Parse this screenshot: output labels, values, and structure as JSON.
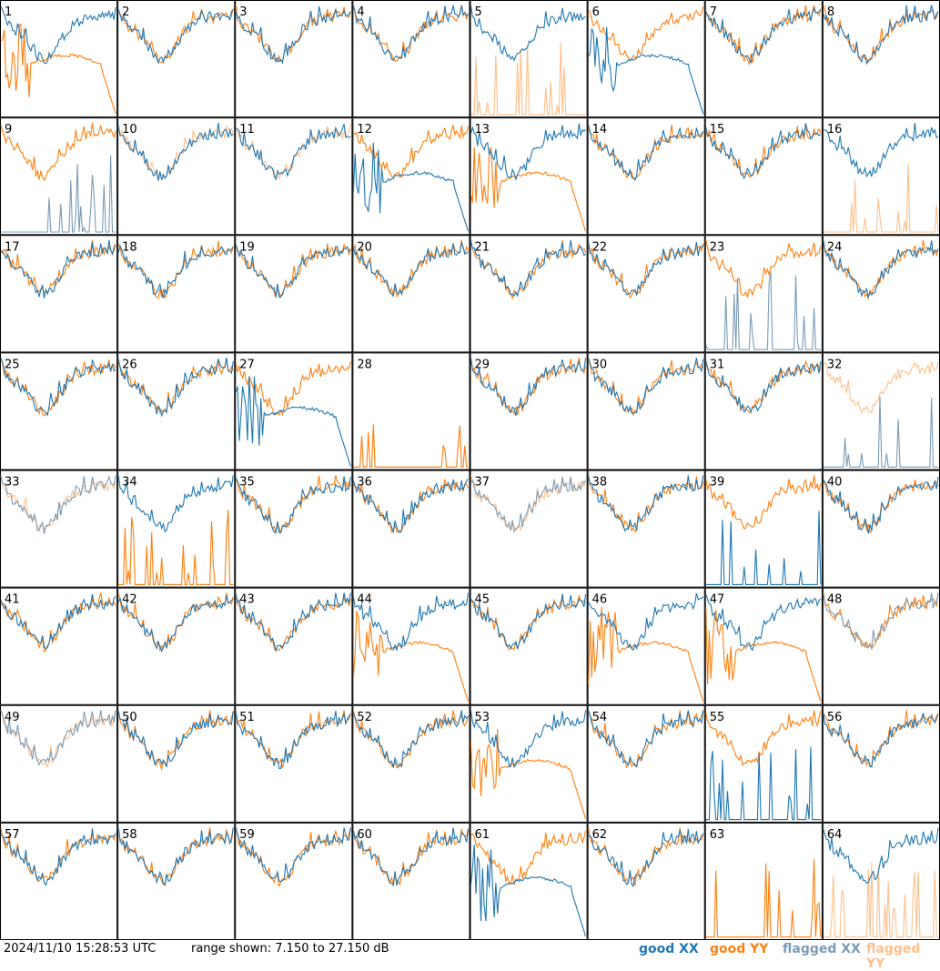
{
  "footer": {
    "timestamp": "2024/11/10 15:28:53 UTC",
    "range_label": "range shown: 7.150 to 27.150 dB"
  },
  "legend": [
    {
      "word": "good",
      "pol": "XX",
      "color": "#1f77b4"
    },
    {
      "word": "good",
      "pol": "YY",
      "color": "#ff7f0e"
    },
    {
      "word": "flagged",
      "pol": "XX",
      "color": "#7b9cb8"
    },
    {
      "word": "flagged",
      "pol": "YY",
      "color": "#ffbf8a"
    }
  ],
  "colors": {
    "good_xx": "#1f77b4",
    "good_yy": "#ff7f0e",
    "flagged_xx": "#7b9cb8",
    "flagged_yy": "#ffbf8a"
  },
  "chart_data": {
    "type": "line",
    "layout": "8x8 small multiples",
    "y_range_db": [
      7.15,
      27.15
    ],
    "panels": [
      {
        "id": "1",
        "xx": "good",
        "yy": "good",
        "xx_shape": "normal",
        "yy_shape": "decay"
      },
      {
        "id": "2",
        "xx": "good",
        "yy": "good",
        "xx_shape": "normal",
        "yy_shape": "normal"
      },
      {
        "id": "3",
        "xx": "good",
        "yy": "good",
        "xx_shape": "normal",
        "yy_shape": "normal"
      },
      {
        "id": "4",
        "xx": "good",
        "yy": "good",
        "xx_shape": "normal",
        "yy_shape": "normal"
      },
      {
        "id": "5",
        "xx": "good",
        "yy": "flagged",
        "xx_shape": "normal",
        "yy_shape": "spikes"
      },
      {
        "id": "6",
        "xx": "good",
        "yy": "good",
        "xx_shape": "decay",
        "yy_shape": "normal"
      },
      {
        "id": "7",
        "xx": "good",
        "yy": "good",
        "xx_shape": "normal",
        "yy_shape": "normal"
      },
      {
        "id": "8",
        "xx": "good",
        "yy": "good",
        "xx_shape": "normal",
        "yy_shape": "normal"
      },
      {
        "id": "9",
        "xx": "flagged",
        "yy": "good",
        "xx_shape": "spikes",
        "yy_shape": "normal"
      },
      {
        "id": "10",
        "xx": "good",
        "yy": "flagged",
        "xx_shape": "normal",
        "yy_shape": "normal"
      },
      {
        "id": "11",
        "xx": "good",
        "yy": "flagged",
        "xx_shape": "normal",
        "yy_shape": "normal"
      },
      {
        "id": "12",
        "xx": "good",
        "yy": "good",
        "xx_shape": "decay",
        "yy_shape": "normal"
      },
      {
        "id": "13",
        "xx": "good",
        "yy": "good",
        "xx_shape": "normal",
        "yy_shape": "decay"
      },
      {
        "id": "14",
        "xx": "good",
        "yy": "good",
        "xx_shape": "normal",
        "yy_shape": "normal"
      },
      {
        "id": "15",
        "xx": "good",
        "yy": "good",
        "xx_shape": "normal",
        "yy_shape": "normal"
      },
      {
        "id": "16",
        "xx": "good",
        "yy": "flagged",
        "xx_shape": "normal",
        "yy_shape": "spikes"
      },
      {
        "id": "17",
        "xx": "good",
        "yy": "good",
        "xx_shape": "normal",
        "yy_shape": "normal"
      },
      {
        "id": "18",
        "xx": "good",
        "yy": "good",
        "xx_shape": "normal",
        "yy_shape": "normal"
      },
      {
        "id": "19",
        "xx": "good",
        "yy": "good",
        "xx_shape": "normal",
        "yy_shape": "normal"
      },
      {
        "id": "20",
        "xx": "good",
        "yy": "good",
        "xx_shape": "normal",
        "yy_shape": "normal"
      },
      {
        "id": "21",
        "xx": "good",
        "yy": "good",
        "xx_shape": "normal",
        "yy_shape": "normal"
      },
      {
        "id": "22",
        "xx": "good",
        "yy": "good",
        "xx_shape": "normal",
        "yy_shape": "normal"
      },
      {
        "id": "23",
        "xx": "flagged",
        "yy": "good",
        "xx_shape": "spikes",
        "yy_shape": "normal"
      },
      {
        "id": "24",
        "xx": "good",
        "yy": "good",
        "xx_shape": "normal",
        "yy_shape": "normal"
      },
      {
        "id": "25",
        "xx": "good",
        "yy": "good",
        "xx_shape": "normal",
        "yy_shape": "normal"
      },
      {
        "id": "26",
        "xx": "good",
        "yy": "good",
        "xx_shape": "normal",
        "yy_shape": "normal"
      },
      {
        "id": "27",
        "xx": "good",
        "yy": "good",
        "xx_shape": "decay",
        "yy_shape": "normal"
      },
      {
        "id": "28",
        "xx": "none",
        "yy": "good",
        "xx_shape": "none",
        "yy_shape": "spikes"
      },
      {
        "id": "29",
        "xx": "good",
        "yy": "good",
        "xx_shape": "normal",
        "yy_shape": "normal"
      },
      {
        "id": "30",
        "xx": "good",
        "yy": "good",
        "xx_shape": "normal",
        "yy_shape": "normal"
      },
      {
        "id": "31",
        "xx": "good",
        "yy": "good",
        "xx_shape": "normal",
        "yy_shape": "normal"
      },
      {
        "id": "32",
        "xx": "flagged",
        "yy": "flagged",
        "xx_shape": "spikes",
        "yy_shape": "normal"
      },
      {
        "id": "33",
        "xx": "flagged",
        "yy": "flagged",
        "xx_shape": "normal",
        "yy_shape": "normal"
      },
      {
        "id": "34",
        "xx": "good",
        "yy": "good",
        "xx_shape": "normal",
        "yy_shape": "spikes"
      },
      {
        "id": "35",
        "xx": "good",
        "yy": "good",
        "xx_shape": "normal",
        "yy_shape": "normal"
      },
      {
        "id": "36",
        "xx": "good",
        "yy": "good",
        "xx_shape": "normal",
        "yy_shape": "normal"
      },
      {
        "id": "37",
        "xx": "flagged",
        "yy": "flagged",
        "xx_shape": "normal",
        "yy_shape": "normal"
      },
      {
        "id": "38",
        "xx": "good",
        "yy": "good",
        "xx_shape": "normal",
        "yy_shape": "normal"
      },
      {
        "id": "39",
        "xx": "good",
        "yy": "good",
        "xx_shape": "spikes",
        "yy_shape": "normal"
      },
      {
        "id": "40",
        "xx": "good",
        "yy": "good",
        "xx_shape": "normal",
        "yy_shape": "normal"
      },
      {
        "id": "41",
        "xx": "good",
        "yy": "good",
        "xx_shape": "normal",
        "yy_shape": "normal"
      },
      {
        "id": "42",
        "xx": "good",
        "yy": "good",
        "xx_shape": "normal",
        "yy_shape": "normal"
      },
      {
        "id": "43",
        "xx": "good",
        "yy": "good",
        "xx_shape": "normal",
        "yy_shape": "normal"
      },
      {
        "id": "44",
        "xx": "good",
        "yy": "good",
        "xx_shape": "normal",
        "yy_shape": "decay"
      },
      {
        "id": "45",
        "xx": "good",
        "yy": "good",
        "xx_shape": "normal",
        "yy_shape": "normal"
      },
      {
        "id": "46",
        "xx": "good",
        "yy": "good",
        "xx_shape": "normal",
        "yy_shape": "decay"
      },
      {
        "id": "47",
        "xx": "good",
        "yy": "good",
        "xx_shape": "normal",
        "yy_shape": "decay"
      },
      {
        "id": "48",
        "xx": "flagged",
        "yy": "good",
        "xx_shape": "normal",
        "yy_shape": "normal"
      },
      {
        "id": "49",
        "xx": "flagged",
        "yy": "flagged",
        "xx_shape": "normal",
        "yy_shape": "normal"
      },
      {
        "id": "50",
        "xx": "good",
        "yy": "good",
        "xx_shape": "normal",
        "yy_shape": "normal"
      },
      {
        "id": "51",
        "xx": "good",
        "yy": "good",
        "xx_shape": "normal",
        "yy_shape": "normal"
      },
      {
        "id": "52",
        "xx": "good",
        "yy": "good",
        "xx_shape": "normal",
        "yy_shape": "normal"
      },
      {
        "id": "53",
        "xx": "good",
        "yy": "good",
        "xx_shape": "normal",
        "yy_shape": "decay"
      },
      {
        "id": "54",
        "xx": "good",
        "yy": "good",
        "xx_shape": "normal",
        "yy_shape": "normal"
      },
      {
        "id": "55",
        "xx": "good",
        "yy": "good",
        "xx_shape": "spikes",
        "yy_shape": "normal"
      },
      {
        "id": "56",
        "xx": "good",
        "yy": "good",
        "xx_shape": "normal",
        "yy_shape": "normal"
      },
      {
        "id": "57",
        "xx": "good",
        "yy": "good",
        "xx_shape": "normal",
        "yy_shape": "normal"
      },
      {
        "id": "58",
        "xx": "good",
        "yy": "good",
        "xx_shape": "normal",
        "yy_shape": "normal"
      },
      {
        "id": "59",
        "xx": "good",
        "yy": "good",
        "xx_shape": "normal",
        "yy_shape": "normal"
      },
      {
        "id": "60",
        "xx": "good",
        "yy": "good",
        "xx_shape": "normal",
        "yy_shape": "normal"
      },
      {
        "id": "61",
        "xx": "good",
        "yy": "good",
        "xx_shape": "decay",
        "yy_shape": "normal"
      },
      {
        "id": "62",
        "xx": "good",
        "yy": "good",
        "xx_shape": "normal",
        "yy_shape": "normal"
      },
      {
        "id": "63",
        "xx": "none",
        "yy": "good",
        "xx_shape": "none",
        "yy_shape": "spikes"
      },
      {
        "id": "64",
        "xx": "good",
        "yy": "flagged",
        "xx_shape": "normal",
        "yy_shape": "spikes"
      }
    ]
  }
}
